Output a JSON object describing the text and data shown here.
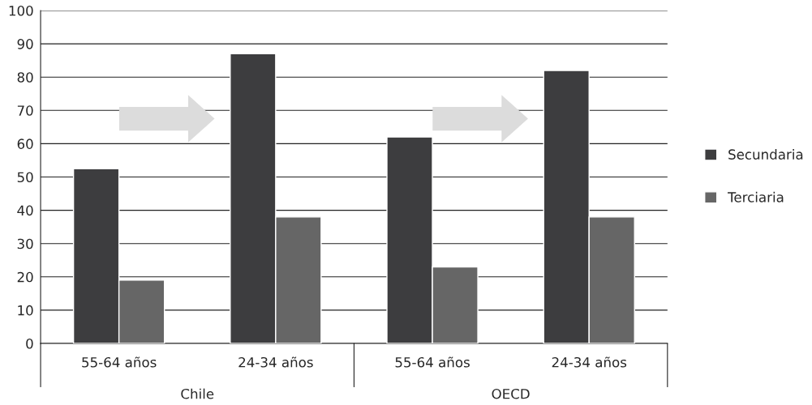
{
  "chart_data": {
    "type": "bar",
    "categories": [
      "55-64 años",
      "24-34 años",
      "55-64 años",
      "24-34 años"
    ],
    "series": [
      {
        "name": "Secundaria",
        "color": "#3d3d3f",
        "values": [
          52.5,
          87,
          62,
          82
        ]
      },
      {
        "name": "Terciaria",
        "color": "#666666",
        "values": [
          19,
          38,
          23,
          38
        ]
      }
    ],
    "ylim": [
      0,
      100
    ],
    "yticks": [
      0,
      10,
      20,
      30,
      40,
      50,
      60,
      70,
      80,
      90,
      100
    ],
    "grid": "y",
    "legend": "right",
    "annotations": [
      "Chile",
      "OECD"
    ]
  }
}
